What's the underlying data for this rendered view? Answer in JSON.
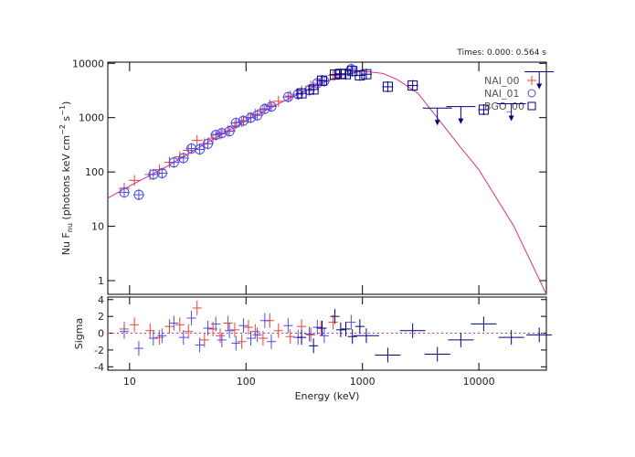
{
  "chart_data": [
    {
      "type": "scatter",
      "title": "Times: 0.000: 0.564 s",
      "ylabel_parts": [
        "Nu F",
        "nu",
        " (photons keV cm",
        "−2",
        " s",
        "−1",
        ")"
      ],
      "xscale": "log",
      "yscale": "log",
      "xlim": [
        6.5,
        38000
      ],
      "ylim": [
        0.56,
        10500
      ],
      "yticks": [
        1,
        10,
        100,
        1000,
        10000
      ],
      "legend": "top right",
      "series": [
        {
          "name": "NAI_00",
          "marker": "plus",
          "color": "#e8403c",
          "x": [
            9,
            11,
            15,
            18,
            22,
            27,
            32,
            38,
            44,
            52,
            60,
            70,
            80,
            92,
            105,
            120,
            140,
            160,
            190,
            240,
            300,
            360,
            440,
            560
          ],
          "values": [
            50,
            70,
            90,
            110,
            150,
            190,
            250,
            380,
            330,
            420,
            500,
            570,
            700,
            840,
            1000,
            1150,
            1400,
            1700,
            2000,
            2500,
            3100,
            3800,
            4800,
            6000
          ]
        },
        {
          "name": "NAI_01",
          "marker": "circle",
          "color": "#4a4af0",
          "x": [
            9,
            12,
            16,
            19,
            24,
            29,
            34,
            40,
            47,
            55,
            62,
            72,
            82,
            95,
            110,
            125,
            145,
            165,
            230,
            280,
            350,
            410,
            470,
            800
          ],
          "values": [
            42,
            38,
            90,
            95,
            150,
            180,
            270,
            260,
            330,
            480,
            520,
            560,
            800,
            880,
            1000,
            1100,
            1450,
            1600,
            2400,
            2700,
            3200,
            4300,
            4700,
            7800
          ]
        },
        {
          "name": "BGO_00",
          "marker": "square",
          "color": "#000080",
          "x": [
            300,
            380,
            450,
            580,
            650,
            720,
            820,
            950,
            1080,
            1650,
            2700,
            11000
          ],
          "values": [
            2800,
            3300,
            4800,
            6200,
            6400,
            6300,
            7200,
            6000,
            6300,
            3700,
            3900,
            1400
          ]
        }
      ],
      "upper_limits": {
        "color": "#000080",
        "x": [
          4400,
          7000,
          19000,
          33000
        ],
        "values": [
          1500,
          1600,
          1800,
          7000
        ]
      },
      "model": {
        "color": "#e0308a",
        "x": [
          6.5,
          10,
          20,
          50,
          100,
          200,
          400,
          700,
          1000,
          1500,
          2000,
          3000,
          5000,
          7000,
          10000,
          20000,
          38000
        ],
        "values": [
          33,
          55,
          120,
          380,
          880,
          1900,
          3900,
          6200,
          7200,
          6500,
          5000,
          2800,
          700,
          280,
          110,
          10,
          0.56
        ]
      }
    },
    {
      "type": "scatter",
      "xlabel": "Energy (keV)",
      "ylabel": "Sigma",
      "xscale": "log",
      "xlim": [
        6.5,
        38000
      ],
      "ylim": [
        -4.4,
        4.3
      ],
      "xticks": [
        10,
        100,
        1000,
        10000
      ],
      "yticks": [
        -4,
        -2,
        0,
        2,
        4
      ],
      "zero_line_color": "#e0308a",
      "series": [
        {
          "color": "#e8403c",
          "x": [
            9,
            11,
            15,
            18,
            22,
            27,
            32,
            38,
            44,
            52,
            60,
            70,
            80,
            92,
            105,
            120,
            140,
            160,
            190,
            240,
            300,
            360,
            440,
            560
          ],
          "values": [
            0.5,
            1,
            0.3,
            -0.5,
            0.8,
            1,
            0.2,
            3,
            -0.8,
            0.5,
            -0.3,
            1.2,
            0.4,
            -1,
            0.7,
            0.2,
            -0.6,
            1.5,
            0.3,
            -0.4,
            0.8,
            -0.2,
            0.6,
            1.3
          ]
        },
        {
          "color": "#4a4af0",
          "x": [
            9,
            12,
            16,
            19,
            24,
            29,
            34,
            40,
            47,
            55,
            62,
            72,
            82,
            95,
            110,
            125,
            145,
            165,
            230,
            280,
            350,
            410,
            470,
            800
          ],
          "values": [
            0.2,
            -1.8,
            -0.6,
            -0.3,
            1.2,
            -0.5,
            1.8,
            -1.4,
            0.6,
            1.1,
            -0.8,
            0.3,
            -1.2,
            0.9,
            -0.6,
            -0.2,
            1.5,
            -1,
            0.9,
            -0.5,
            -0.1,
            0.7,
            -0.3,
            1.3
          ]
        },
        {
          "color": "#000080",
          "x": [
            300,
            380,
            450,
            580,
            650,
            720,
            820,
            950,
            1080,
            1650,
            2700,
            4400,
            7000,
            11000,
            19000,
            33000
          ],
          "values": [
            -0.5,
            -1.5,
            0.6,
            2,
            0.4,
            0.5,
            -0.4,
            0.8,
            -0.3,
            -2.6,
            0.3,
            -2.5,
            -0.8,
            1.1,
            -0.5,
            -0.2
          ]
        }
      ]
    }
  ]
}
